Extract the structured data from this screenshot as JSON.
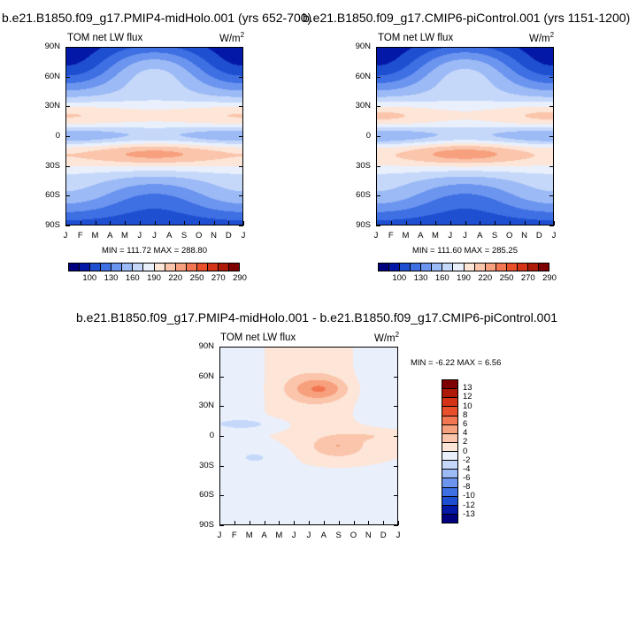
{
  "panels": [
    {
      "title": "b.e21.B1850.f09_g17.PMIP4-midHolo.001 (yrs 652-700)",
      "left_label": "TOM net LW flux",
      "units_base": "W/m",
      "units_exp": "2",
      "minmax": "MIN = 111.72  MAX = 288.80"
    },
    {
      "title": "b.e21.B1850.f09_g17.CMIP6-piControl.001 (yrs 1151-1200)",
      "left_label": "TOM net LW flux",
      "units_base": "W/m",
      "units_exp": "2",
      "minmax": "MIN = 111.60  MAX = 285.25"
    },
    {
      "title": "b.e21.B1850.f09_g17.PMIP4-midHolo.001 - b.e21.B1850.f09_g17.CMIP6-piControl.001",
      "left_label": "TOM net LW flux",
      "units_base": "W/m",
      "units_exp": "2",
      "minmax": "MIN =   -6.22  MAX =    6.56"
    }
  ],
  "chart_data": [
    {
      "type": "heatmap",
      "title": "b.e21.B1850.f09_g17.PMIP4-midHolo.001 (yrs 652-700)",
      "variable": "TOM net LW flux",
      "units": "W/m2",
      "x": [
        "J",
        "F",
        "M",
        "A",
        "M",
        "J",
        "J",
        "A",
        "S",
        "O",
        "N",
        "D",
        "J"
      ],
      "y": [
        "90S",
        "60S",
        "30S",
        "0",
        "30N",
        "60N",
        "90N"
      ],
      "ylim": [
        -90,
        90
      ],
      "min": 111.72,
      "max": 288.8,
      "colorbar_levels": [
        "100",
        "130",
        "160",
        "190",
        "220",
        "250",
        "270",
        "290"
      ],
      "colorbar_edges": [
        80,
        100,
        115,
        130,
        145,
        160,
        175,
        190,
        205,
        220,
        235,
        250,
        260,
        270,
        280,
        290,
        300
      ],
      "colorbar_colors": [
        "#00007f",
        "#0418a8",
        "#1f4fd1",
        "#3e6fe3",
        "#6c95ef",
        "#9cbaf5",
        "#c6d8fa",
        "#e9f0fc",
        "#fde5d8",
        "#fac5ab",
        "#f7a07d",
        "#f37652",
        "#ea4f2c",
        "#d53317",
        "#ad1a08",
        "#7f0000"
      ]
    },
    {
      "type": "heatmap",
      "title": "b.e21.B1850.f09_g17.CMIP6-piControl.001 (yrs 1151-1200)",
      "variable": "TOM net LW flux",
      "units": "W/m2",
      "x": [
        "J",
        "F",
        "M",
        "A",
        "M",
        "J",
        "J",
        "A",
        "S",
        "O",
        "N",
        "D",
        "J"
      ],
      "y": [
        "90S",
        "60S",
        "30S",
        "0",
        "30N",
        "60N",
        "90N"
      ],
      "ylim": [
        -90,
        90
      ],
      "min": 111.6,
      "max": 285.25,
      "colorbar_levels": [
        "100",
        "130",
        "160",
        "190",
        "220",
        "250",
        "270",
        "290"
      ]
    },
    {
      "type": "heatmap",
      "title": "b.e21.B1850.f09_g17.PMIP4-midHolo.001 - b.e21.B1850.f09_g17.CMIP6-piControl.001",
      "variable": "TOM net LW flux",
      "units": "W/m2",
      "x": [
        "J",
        "F",
        "M",
        "A",
        "M",
        "J",
        "J",
        "A",
        "S",
        "O",
        "N",
        "D",
        "J"
      ],
      "y": [
        "90S",
        "60S",
        "30S",
        "0",
        "30N",
        "60N",
        "90N"
      ],
      "ylim": [
        -90,
        90
      ],
      "min": -6.22,
      "max": 6.56,
      "colorbar_levels": [
        "13",
        "12",
        "10",
        "8",
        "6",
        "4",
        "2",
        "0",
        "-2",
        "-4",
        "-6",
        "-8",
        "-10",
        "-12",
        "-13"
      ],
      "colorbar_edges": [
        -14,
        -13,
        -12,
        -10,
        -8,
        -6,
        -4,
        -2,
        0,
        2,
        4,
        6,
        8,
        10,
        12,
        13,
        14
      ],
      "colorbar_colors": [
        "#00007f",
        "#0418a8",
        "#1f4fd1",
        "#3e6fe3",
        "#6c95ef",
        "#9cbaf5",
        "#c6d8fa",
        "#e9f0fc",
        "#fde5d8",
        "#fac5ab",
        "#f7a07d",
        "#f37652",
        "#ea4f2c",
        "#d53317",
        "#ad1a08",
        "#7f0000"
      ]
    }
  ]
}
